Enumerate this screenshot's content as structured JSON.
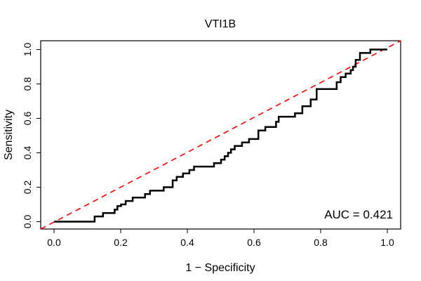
{
  "title": "VTI1B",
  "axes": {
    "xlabel": "1 − Specificity",
    "ylabel": "Sensitivity",
    "x_tick_labels": [
      "0.0",
      "0.2",
      "0.4",
      "0.6",
      "0.8",
      "1.0"
    ],
    "y_tick_labels": [
      "0.0",
      "0.2",
      "0.4",
      "0.6",
      "0.8",
      "1.0"
    ],
    "x_tick_values": [
      0,
      0.2,
      0.4,
      0.6,
      0.8,
      1.0
    ],
    "y_tick_values": [
      0,
      0.2,
      0.4,
      0.6,
      0.8,
      1.0
    ]
  },
  "annotation": {
    "auc_label": "AUC = 0.421"
  },
  "colors": {
    "roc_curve": "#000000",
    "diagonal": "#ff0000",
    "box": "#000000",
    "text": "#000000",
    "background": "#ffffff"
  },
  "chart_data": {
    "type": "line",
    "title": "VTI1B",
    "xlabel": "1 − Specificity",
    "ylabel": "Sensitivity",
    "xlim": [
      0,
      1
    ],
    "ylim": [
      0,
      1
    ],
    "grid": false,
    "legend": "none",
    "auc": 0.421,
    "series": [
      {
        "name": "roc-step-curve",
        "style": "step",
        "color": "#000000",
        "line_width": 2.5,
        "start": [
          0.0,
          0.0
        ],
        "end": [
          1.0,
          1.0
        ],
        "steps": [
          [
            0.122,
            0.03
          ],
          [
            0.147,
            0.05
          ],
          [
            0.182,
            0.07
          ],
          [
            0.19,
            0.09
          ],
          [
            0.201,
            0.1
          ],
          [
            0.215,
            0.12
          ],
          [
            0.236,
            0.14
          ],
          [
            0.273,
            0.16
          ],
          [
            0.288,
            0.18
          ],
          [
            0.329,
            0.2
          ],
          [
            0.356,
            0.24
          ],
          [
            0.368,
            0.26
          ],
          [
            0.387,
            0.28
          ],
          [
            0.406,
            0.3
          ],
          [
            0.42,
            0.32
          ],
          [
            0.48,
            0.34
          ],
          [
            0.501,
            0.36
          ],
          [
            0.512,
            0.38
          ],
          [
            0.522,
            0.4
          ],
          [
            0.531,
            0.42
          ],
          [
            0.542,
            0.44
          ],
          [
            0.564,
            0.46
          ],
          [
            0.585,
            0.48
          ],
          [
            0.613,
            0.53
          ],
          [
            0.634,
            0.55
          ],
          [
            0.666,
            0.58
          ],
          [
            0.674,
            0.61
          ],
          [
            0.723,
            0.63
          ],
          [
            0.745,
            0.67
          ],
          [
            0.77,
            0.71
          ],
          [
            0.788,
            0.77
          ],
          [
            0.848,
            0.81
          ],
          [
            0.86,
            0.84
          ],
          [
            0.875,
            0.86
          ],
          [
            0.89,
            0.88
          ],
          [
            0.897,
            0.9
          ],
          [
            0.905,
            0.94
          ],
          [
            0.918,
            0.98
          ],
          [
            0.949,
            1.0
          ]
        ]
      },
      {
        "name": "chance-diagonal",
        "style": "dashed",
        "color": "#ff0000",
        "line_width": 1.6,
        "points": [
          [
            0,
            0
          ],
          [
            1,
            1
          ]
        ]
      }
    ]
  }
}
